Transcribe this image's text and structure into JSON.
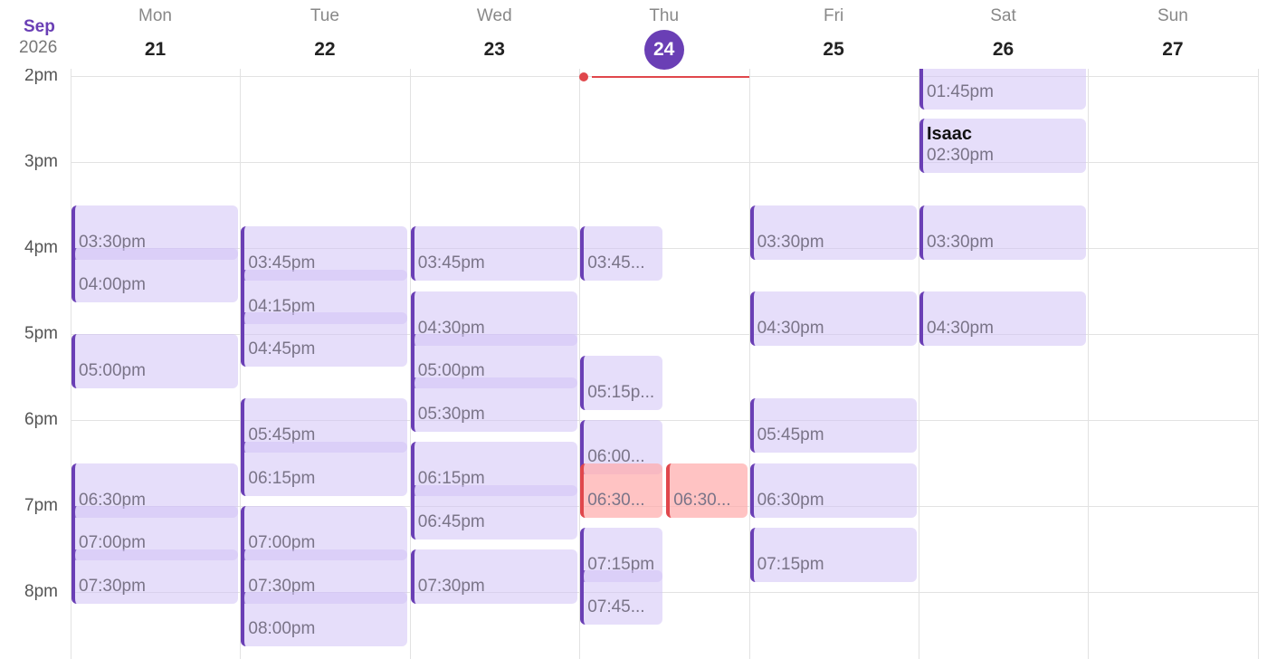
{
  "header": {
    "month": "Sep",
    "year": "2026"
  },
  "hours": [
    "2pm",
    "3pm",
    "4pm",
    "5pm",
    "6pm",
    "7pm",
    "8pm"
  ],
  "days": [
    {
      "name": "Mon",
      "date": "21",
      "events": [
        {
          "time": "03:30pm"
        },
        {
          "time": "04:00pm"
        },
        {
          "time": "05:00pm"
        },
        {
          "time": "06:30pm"
        },
        {
          "time": "07:00pm"
        },
        {
          "time": "07:30pm"
        }
      ]
    },
    {
      "name": "Tue",
      "date": "22",
      "events": [
        {
          "time": "03:45pm"
        },
        {
          "time": "04:15pm"
        },
        {
          "time": "04:45pm"
        },
        {
          "time": "05:45pm"
        },
        {
          "time": "06:15pm"
        },
        {
          "time": "07:00pm"
        },
        {
          "time": "07:30pm"
        },
        {
          "time": "08:00pm"
        }
      ]
    },
    {
      "name": "Wed",
      "date": "23",
      "events": [
        {
          "time": "03:45pm"
        },
        {
          "time": "04:30pm"
        },
        {
          "time": "05:00pm"
        },
        {
          "time": "05:30pm"
        },
        {
          "time": "06:15pm"
        },
        {
          "time": "06:45pm"
        },
        {
          "time": "07:30pm"
        }
      ]
    },
    {
      "name": "Thu",
      "date": "24",
      "events": [
        {
          "time": "03:45..."
        },
        {
          "time": "05:15p..."
        },
        {
          "time": "06:00..."
        },
        {
          "time": "06:30..."
        },
        {
          "time": "06:30..."
        },
        {
          "time": "07:15pm"
        },
        {
          "time": "07:45..."
        }
      ]
    },
    {
      "name": "Fri",
      "date": "25",
      "events": [
        {
          "time": "03:30pm"
        },
        {
          "time": "04:30pm"
        },
        {
          "time": "05:45pm"
        },
        {
          "time": "06:30pm"
        },
        {
          "time": "07:15pm"
        }
      ]
    },
    {
      "name": "Sat",
      "date": "26",
      "events": [
        {
          "time": "01:45pm"
        },
        {
          "title": "Isaac",
          "time": "02:30pm"
        },
        {
          "time": "03:30pm"
        },
        {
          "time": "04:30pm"
        }
      ]
    },
    {
      "name": "Sun",
      "date": "27",
      "events": []
    }
  ]
}
